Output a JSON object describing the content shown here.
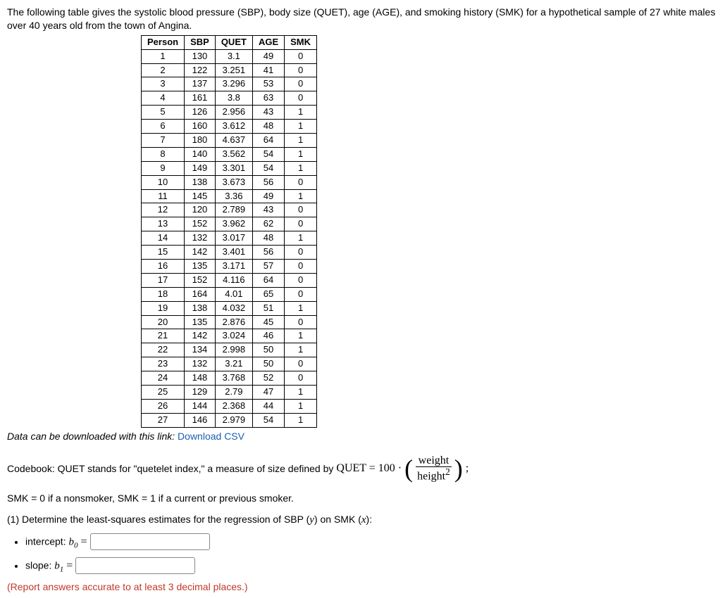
{
  "intro": "The following table gives the systolic blood pressure (SBP), body size (QUET), age (AGE), and smoking history (SMK) for a hypothetical sample of 27 white males over 40 years old from the town of Angina.",
  "table": {
    "columns": [
      "Person",
      "SBP",
      "QUET",
      "AGE",
      "SMK"
    ],
    "rows": [
      [
        "1",
        "130",
        "3.1",
        "49",
        "0"
      ],
      [
        "2",
        "122",
        "3.251",
        "41",
        "0"
      ],
      [
        "3",
        "137",
        "3.296",
        "53",
        "0"
      ],
      [
        "4",
        "161",
        "3.8",
        "63",
        "0"
      ],
      [
        "5",
        "126",
        "2.956",
        "43",
        "1"
      ],
      [
        "6",
        "160",
        "3.612",
        "48",
        "1"
      ],
      [
        "7",
        "180",
        "4.637",
        "64",
        "1"
      ],
      [
        "8",
        "140",
        "3.562",
        "54",
        "1"
      ],
      [
        "9",
        "149",
        "3.301",
        "54",
        "1"
      ],
      [
        "10",
        "138",
        "3.673",
        "56",
        "0"
      ],
      [
        "11",
        "145",
        "3.36",
        "49",
        "1"
      ],
      [
        "12",
        "120",
        "2.789",
        "43",
        "0"
      ],
      [
        "13",
        "152",
        "3.962",
        "62",
        "0"
      ],
      [
        "14",
        "132",
        "3.017",
        "48",
        "1"
      ],
      [
        "15",
        "142",
        "3.401",
        "56",
        "0"
      ],
      [
        "16",
        "135",
        "3.171",
        "57",
        "0"
      ],
      [
        "17",
        "152",
        "4.116",
        "64",
        "0"
      ],
      [
        "18",
        "164",
        "4.01",
        "65",
        "0"
      ],
      [
        "19",
        "138",
        "4.032",
        "51",
        "1"
      ],
      [
        "20",
        "135",
        "2.876",
        "45",
        "0"
      ],
      [
        "21",
        "142",
        "3.024",
        "46",
        "1"
      ],
      [
        "22",
        "134",
        "2.998",
        "50",
        "1"
      ],
      [
        "23",
        "132",
        "3.21",
        "50",
        "0"
      ],
      [
        "24",
        "148",
        "3.768",
        "52",
        "0"
      ],
      [
        "25",
        "129",
        "2.79",
        "47",
        "1"
      ],
      [
        "26",
        "144",
        "2.368",
        "44",
        "1"
      ],
      [
        "27",
        "146",
        "2.979",
        "54",
        "1"
      ]
    ]
  },
  "download": {
    "prefix": "Data can be downloaded with this link: ",
    "link_text": "Download CSV"
  },
  "codebook": {
    "prefix": "Codebook:  QUET stands for \"quetelet index,\" a measure of size defined by ",
    "eq_left": "QUET = 100 · ",
    "frac_num": "weight",
    "frac_den": "height",
    "frac_den_exp": "2",
    "suffix": ";"
  },
  "smk_line": "SMK = 0 if a nonsmoker, SMK = 1 if a current or previous smoker.",
  "question": {
    "number": "(1)",
    "text_before_y": "  Determine the least-squares estimates for the regression of SBP (",
    "y": "y",
    "mid": ") on SMK (",
    "x": "x",
    "after": "):"
  },
  "inputs": {
    "intercept_label": "intercept:  ",
    "b0": "b",
    "b0_sub": "0",
    "eq": " = ",
    "slope_label": "slope:  ",
    "b1": "b",
    "b1_sub": "1"
  },
  "note": "(Report answers accurate to at least 3 decimal places.)"
}
